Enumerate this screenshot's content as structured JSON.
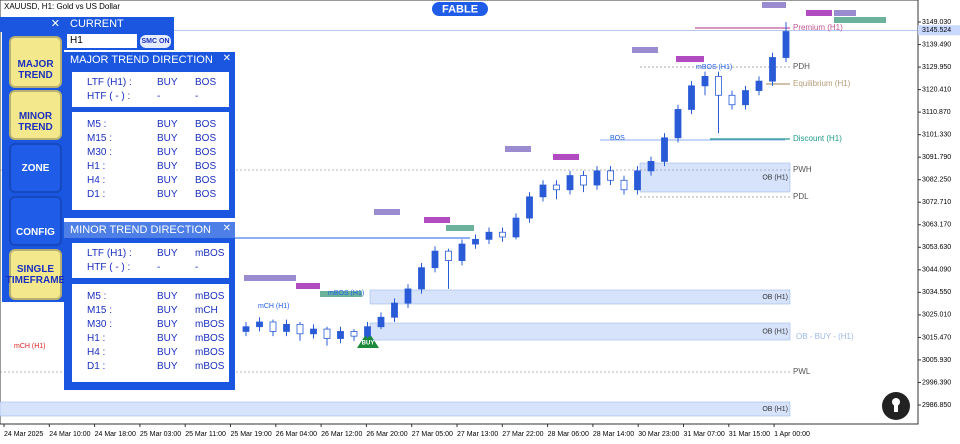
{
  "header": {
    "symbol": "XAUUSD, H1:  Gold vs US Dollar",
    "brand": "FABLE"
  },
  "sidebar": {
    "buttons": [
      "MAJOR TREND",
      "MINOR TREND",
      "ZONE",
      "CONFIG",
      "SINGLE TIMEFRAME"
    ]
  },
  "current": {
    "title": "CURRENT",
    "timeframe": "H1",
    "toggle": "SMC ON"
  },
  "major": {
    "title": "MAJOR TREND DIRECTION",
    "top": [
      [
        "LTF (H1) :",
        "BUY",
        "BOS"
      ],
      [
        "HTF ( - ) :",
        "-",
        "-"
      ]
    ],
    "rows": [
      [
        "M5 :",
        "BUY",
        "BOS"
      ],
      [
        "M15 :",
        "BUY",
        "BOS"
      ],
      [
        "M30 :",
        "BUY",
        "BOS"
      ],
      [
        "H1 :",
        "BUY",
        "BOS"
      ],
      [
        "H4 :",
        "BUY",
        "BOS"
      ],
      [
        "D1 :",
        "BUY",
        "BOS"
      ]
    ]
  },
  "minor": {
    "title": "MINOR TREND DIRECTION",
    "top": [
      [
        "LTF (H1) :",
        "BUY",
        "mBOS"
      ],
      [
        "HTF ( - ) :",
        "-",
        "-"
      ]
    ],
    "rows": [
      [
        "M5 :",
        "BUY",
        "mBOS"
      ],
      [
        "M15 :",
        "BUY",
        "mCH"
      ],
      [
        "M30 :",
        "BUY",
        "mBOS"
      ],
      [
        "H1 :",
        "BUY",
        "mBOS"
      ],
      [
        "H4 :",
        "BUY",
        "mBOS"
      ],
      [
        "D1 :",
        "BUY",
        "mBOS"
      ]
    ]
  },
  "chart": {
    "ylim": [
      2979.65,
      3158.35
    ],
    "price_ticks": [
      {
        "value": 3149.03,
        "label": "3149.030"
      },
      {
        "value": 3139.49,
        "label": "3139.490"
      },
      {
        "value": 3129.95,
        "label": "3129.950"
      },
      {
        "value": 3120.41,
        "label": "3120.410"
      },
      {
        "value": 3110.87,
        "label": "3110.870"
      },
      {
        "value": 3101.33,
        "label": "3101.330"
      },
      {
        "value": 3091.79,
        "label": "3091.790"
      },
      {
        "value": 3082.25,
        "label": "3082.250"
      },
      {
        "value": 3072.71,
        "label": "3072.710"
      },
      {
        "value": 3063.17,
        "label": "3063.170"
      },
      {
        "value": 3053.63,
        "label": "3053.630"
      },
      {
        "value": 3044.09,
        "label": "3044.090"
      },
      {
        "value": 3034.55,
        "label": "3034.550"
      },
      {
        "value": 3025.01,
        "label": "3025.010"
      },
      {
        "value": 3015.47,
        "label": "3015.470"
      },
      {
        "value": 3005.93,
        "label": "3005.930"
      },
      {
        "value": 2996.39,
        "label": "2996.390"
      },
      {
        "value": 2986.85,
        "label": "2986.850"
      }
    ],
    "current_price": {
      "value": 3145.524,
      "label": "3145.524"
    },
    "time_labels": [
      "24 Mar 2025",
      "24 Mar 10:00",
      "24 Mar 18:00",
      "25 Mar 03:00",
      "25 Mar 11:00",
      "25 Mar 19:00",
      "26 Mar 04:00",
      "26 Mar 12:00",
      "26 Mar 20:00",
      "27 Mar 05:00",
      "27 Mar 13:00",
      "27 Mar 22:00",
      "28 Mar 06:00",
      "28 Mar 14:00",
      "30 Mar 23:00",
      "31 Mar 07:00",
      "31 Mar 15:00",
      "1 Apr 00:00"
    ],
    "candles": [
      [
        3018,
        3022,
        3016,
        3020
      ],
      [
        3020,
        3024,
        3018,
        3022
      ],
      [
        3022,
        3023,
        3016,
        3018
      ],
      [
        3018,
        3023,
        3016,
        3021
      ],
      [
        3021,
        3022,
        3014,
        3017
      ],
      [
        3017,
        3021,
        3015,
        3019
      ],
      [
        3019,
        3020,
        3012,
        3015
      ],
      [
        3015,
        3020,
        3013,
        3018
      ],
      [
        3018,
        3019,
        3014,
        3016
      ],
      [
        3016,
        3022,
        3015,
        3020
      ],
      [
        3020,
        3026,
        3019,
        3024
      ],
      [
        3024,
        3032,
        3022,
        3030
      ],
      [
        3030,
        3038,
        3028,
        3036
      ],
      [
        3036,
        3047,
        3034,
        3045
      ],
      [
        3045,
        3054,
        3043,
        3052
      ],
      [
        3052,
        3053,
        3036,
        3048
      ],
      [
        3048,
        3057,
        3046,
        3055
      ],
      [
        3055,
        3059,
        3053,
        3057
      ],
      [
        3057,
        3062,
        3055,
        3060
      ],
      [
        3060,
        3062,
        3056,
        3058
      ],
      [
        3058,
        3068,
        3057,
        3066
      ],
      [
        3066,
        3077,
        3064,
        3075
      ],
      [
        3075,
        3082,
        3073,
        3080
      ],
      [
        3080,
        3082,
        3074,
        3078
      ],
      [
        3078,
        3086,
        3076,
        3084
      ],
      [
        3084,
        3086,
        3077,
        3080
      ],
      [
        3080,
        3088,
        3078,
        3086
      ],
      [
        3086,
        3088,
        3080,
        3082
      ],
      [
        3082,
        3084,
        3076,
        3078
      ],
      [
        3078,
        3088,
        3076,
        3086
      ],
      [
        3086,
        3092,
        3084,
        3090
      ],
      [
        3090,
        3102,
        3088,
        3100
      ],
      [
        3100,
        3114,
        3098,
        3112
      ],
      [
        3112,
        3124,
        3110,
        3122
      ],
      [
        3122,
        3128,
        3118,
        3126
      ],
      [
        3126,
        3128,
        3102,
        3118
      ],
      [
        3118,
        3120,
        3112,
        3114
      ],
      [
        3114,
        3122,
        3112,
        3120
      ],
      [
        3120,
        3126,
        3118,
        3124
      ],
      [
        3124,
        3136,
        3122,
        3134
      ],
      [
        3134,
        3149,
        3132,
        3145
      ]
    ],
    "levels": [
      "Premium (H1)",
      "PDH",
      "Equilibrium (H1)",
      "Discount (H1)",
      "PWH",
      "PDL",
      "PWL"
    ],
    "zones": [
      "OB (H1)",
      "OB (H1)",
      "OB (H1)",
      "OB (H1)",
      "OB - BUY - (H1)"
    ],
    "tags": [
      "BOS",
      "mBOS (H1)",
      "mCH (H1)",
      "mBOS (H1)",
      "mCH (H1)",
      "BUY"
    ]
  }
}
